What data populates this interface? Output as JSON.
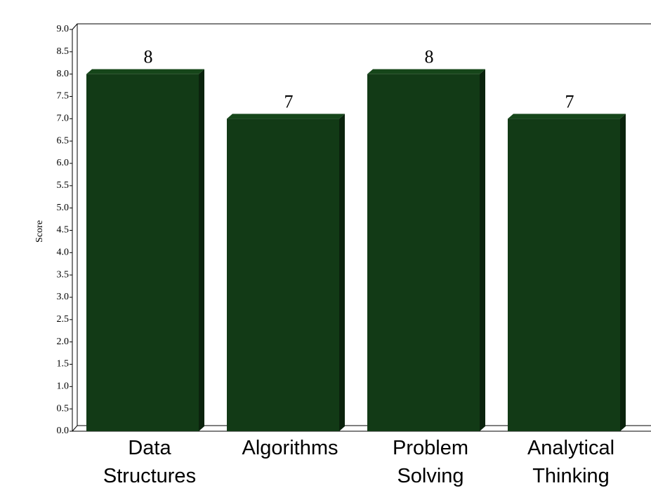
{
  "chart_data": {
    "type": "bar3d",
    "y_label": "Score",
    "categories": [
      "Data Structures",
      "Algorithms",
      "Problem Solving",
      "Analytical Thinking"
    ],
    "values": [
      8,
      7,
      8,
      7
    ],
    "color": "#123a16",
    "ylim": [
      0,
      9
    ],
    "yticks": [
      {
        "value": 0,
        "label": "0.0"
      },
      {
        "value": 0.5,
        "label": "0.5"
      },
      {
        "value": 1,
        "label": "1.0"
      },
      {
        "value": 1.5,
        "label": "1.5"
      },
      {
        "value": 2,
        "label": "2.0"
      },
      {
        "value": 2.5,
        "label": "2.5"
      },
      {
        "value": 3,
        "label": "3.0"
      },
      {
        "value": 3.5,
        "label": "3.5"
      },
      {
        "value": 4,
        "label": "4.0"
      },
      {
        "value": 4.5,
        "label": "4.5"
      },
      {
        "value": 5,
        "label": "5.0"
      },
      {
        "value": 5.5,
        "label": "5.5"
      },
      {
        "value": 6,
        "label": "6.0"
      },
      {
        "value": 6.5,
        "label": "6.5"
      },
      {
        "value": 7,
        "label": "7.0"
      },
      {
        "value": 7.5,
        "label": "7.5"
      },
      {
        "value": 8,
        "label": "8.0"
      },
      {
        "value": 8.5,
        "label": "8.5"
      },
      {
        "value": 9,
        "label": "9.0"
      }
    ],
    "grid": false
  }
}
